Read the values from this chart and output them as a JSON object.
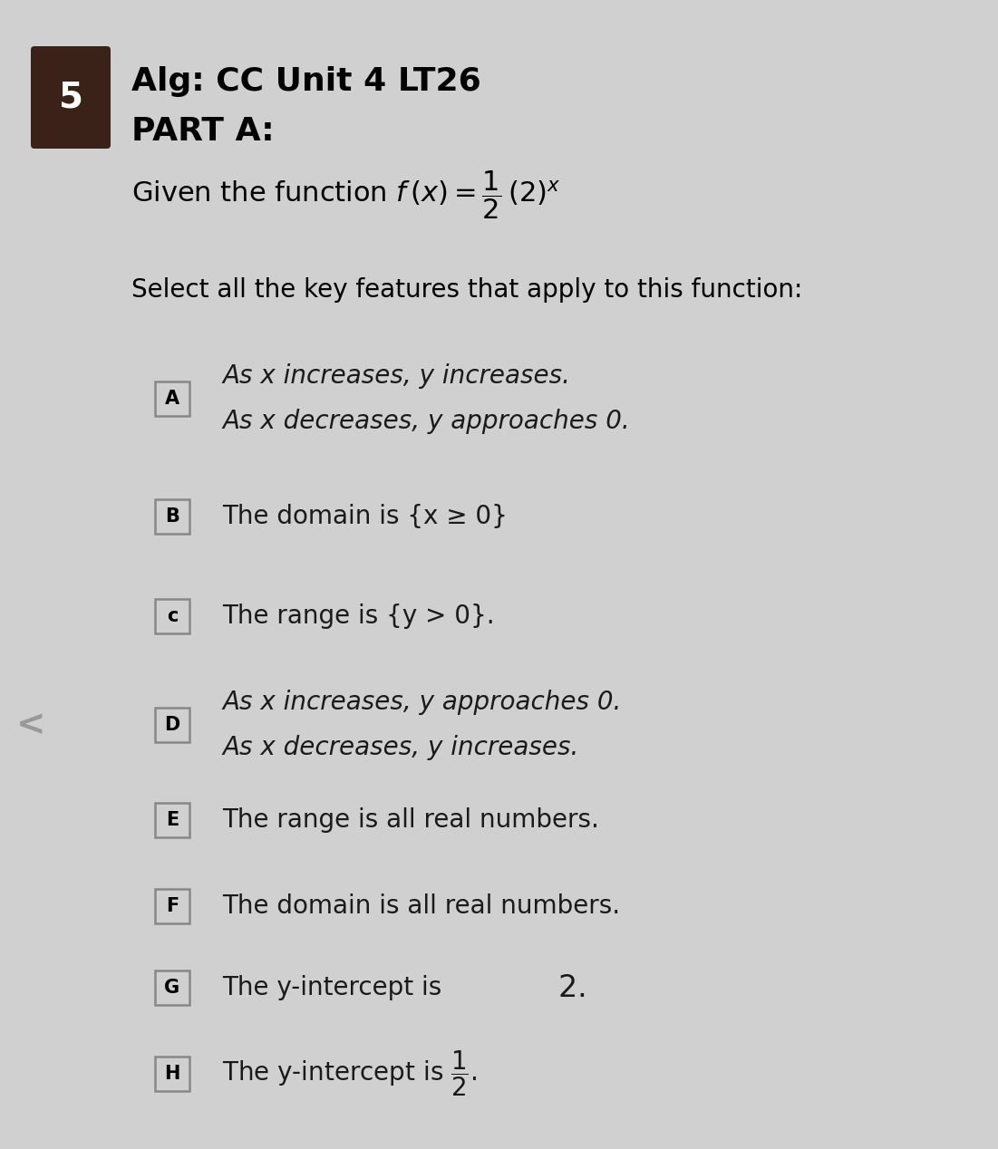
{
  "background_color": "#d0d0d0",
  "number_box_color": "#3a2218",
  "number_box_text": "5",
  "title_line1": "Alg: CC Unit 4 LT26",
  "title_line2": "PART A:",
  "select_text": "Select all the key features that apply to this function:",
  "options": [
    {
      "label": "A",
      "lines": [
        "As x increases, y increases.",
        "As x decreases, y approaches 0."
      ],
      "italic": true
    },
    {
      "label": "B",
      "lines": [
        "The domain is {x ≥ 0}"
      ],
      "italic": false
    },
    {
      "label": "c",
      "lines": [
        "The range is {y > 0}."
      ],
      "italic": false
    },
    {
      "label": "D",
      "lines": [
        "As x increases, y approaches 0.",
        "As x decreases, y increases."
      ],
      "italic": true
    },
    {
      "label": "E",
      "lines": [
        "The range is all real numbers."
      ],
      "italic": false
    },
    {
      "label": "F",
      "lines": [
        "The domain is all real numbers."
      ],
      "italic": false
    },
    {
      "label": "G",
      "lines": [
        "The y-intercept is 2."
      ],
      "italic": false,
      "special": "G"
    },
    {
      "label": "H",
      "lines": [
        "The y-intercept is [FRAC]."
      ],
      "italic": false,
      "special": "H"
    }
  ],
  "arrow_char": "<",
  "arrow_color": "#999999",
  "label_box_edge_color": "#888888",
  "text_color": "#1a1a1a"
}
